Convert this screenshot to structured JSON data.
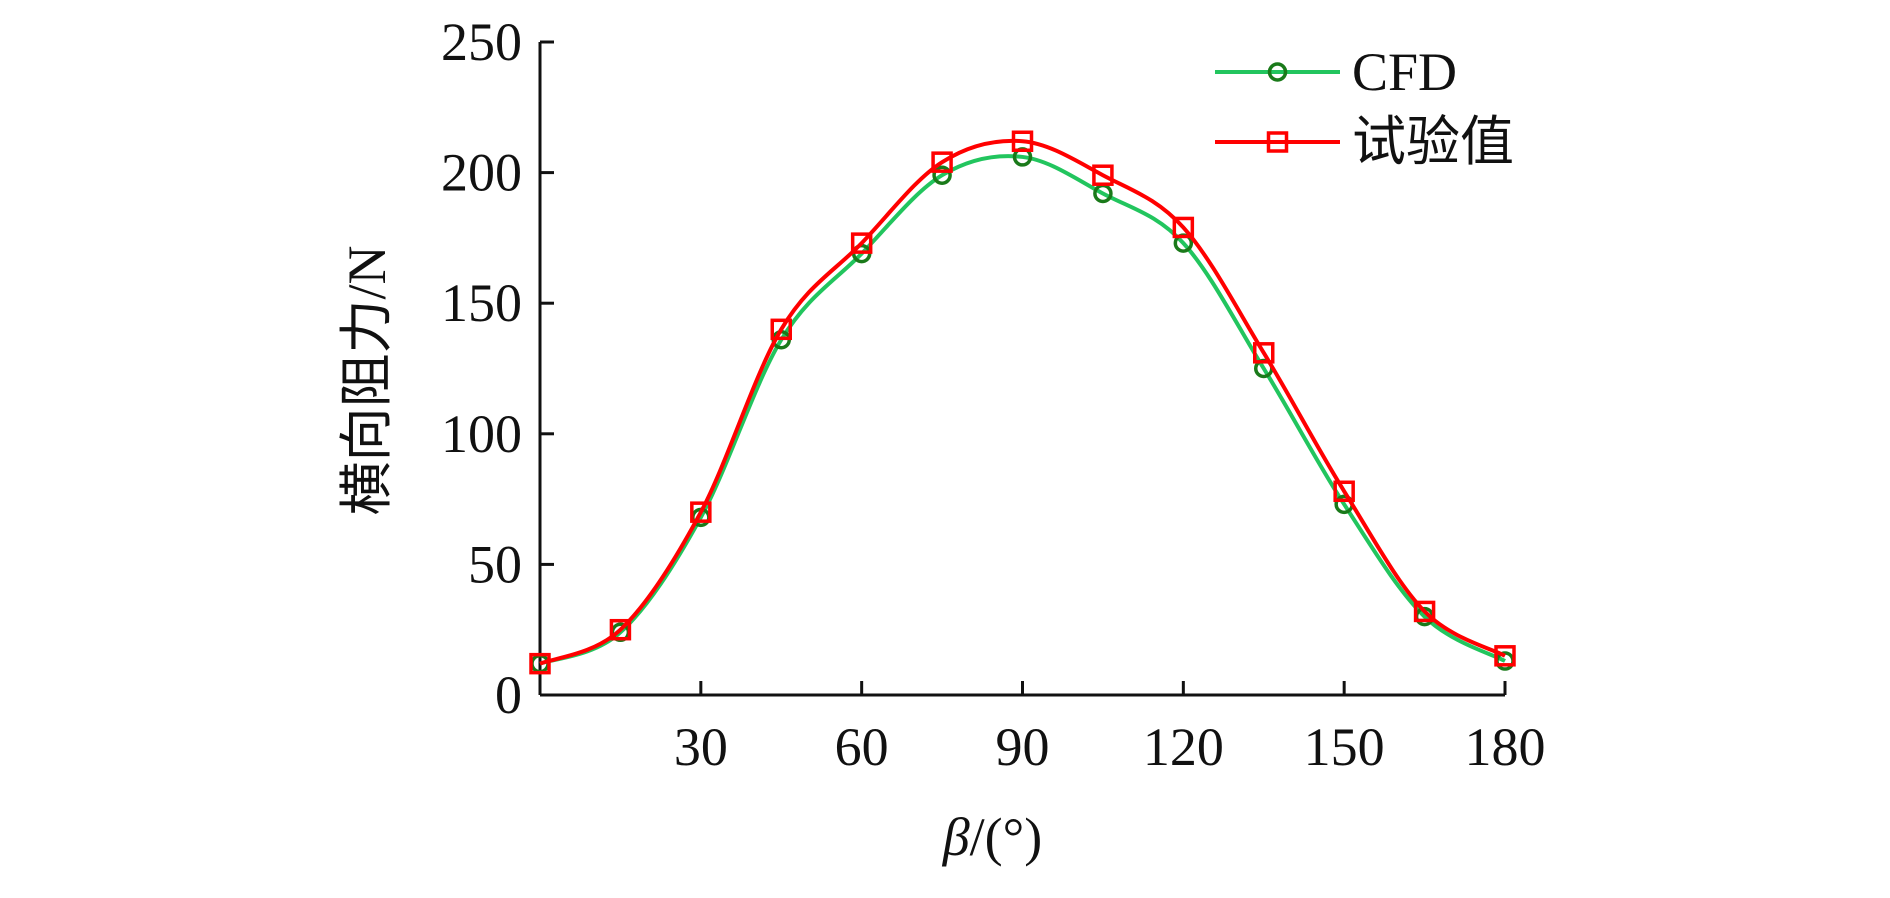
{
  "chart_data": {
    "type": "line",
    "title": "",
    "xlabel_symbol": "β",
    "xlabel_unit": "/(°)",
    "ylabel": "横向阻力/N",
    "xlim": [
      0,
      180
    ],
    "ylim": [
      0,
      250
    ],
    "x_ticks": [
      30,
      60,
      90,
      120,
      150,
      180
    ],
    "y_ticks": [
      0,
      50,
      100,
      150,
      200,
      250
    ],
    "x": [
      0,
      15,
      30,
      45,
      60,
      75,
      90,
      105,
      120,
      135,
      150,
      165,
      180
    ],
    "series": [
      {
        "name": "CFD",
        "color": "#22c55e",
        "marker_color": "#1a7a1a",
        "marker": "circle",
        "values": [
          12,
          24,
          68,
          136,
          169,
          199,
          206,
          192,
          173,
          125,
          73,
          30,
          13
        ]
      },
      {
        "name": "试验值",
        "color": "#ff0000",
        "marker_color": "#ff0000",
        "marker": "square",
        "values": [
          12,
          25,
          70,
          140,
          173,
          204,
          212,
          199,
          179,
          131,
          78,
          32,
          15
        ]
      }
    ],
    "legend_position": "top-right"
  }
}
